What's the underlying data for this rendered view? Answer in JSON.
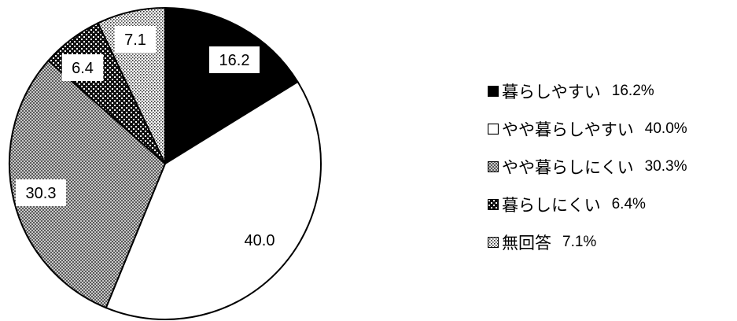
{
  "chart_data": {
    "type": "pie",
    "categories": [
      "暮らしやすい",
      "やや暮らしやすい",
      "やや暮らしにくい",
      "暮らしにくい",
      "無回答"
    ],
    "values": [
      16.2,
      40.0,
      30.3,
      6.4,
      7.1
    ],
    "slice_labels": [
      "16.2",
      "40.0",
      "30.3",
      "6.4",
      "7.1"
    ],
    "start_angle_deg": 0,
    "direction": "clockwise",
    "fills": [
      "solid-black",
      "white",
      "dense-checker-gray",
      "black-with-white-dots",
      "light-dotted"
    ],
    "legend_position": "right"
  },
  "legend": {
    "items": [
      {
        "label": "暮らしやすい",
        "value": "16.2%"
      },
      {
        "label": "やや暮らしやすい",
        "value": "40.0%"
      },
      {
        "label": "やや暮らしにくい",
        "value": "30.3%"
      },
      {
        "label": "暮らしにくい",
        "value": "6.4%"
      },
      {
        "label": "無回答",
        "value": "7.1%"
      }
    ]
  }
}
